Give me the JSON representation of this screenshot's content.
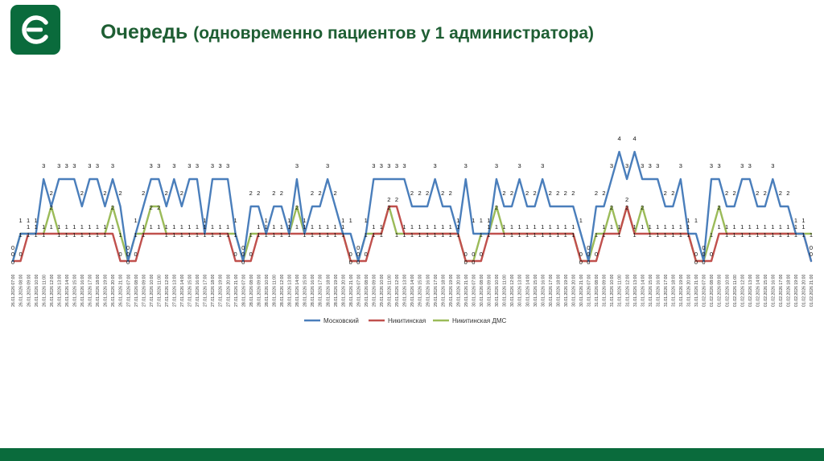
{
  "header": {
    "title": "Очередь",
    "subtitle": "(одновременно пациентов у 1 администратора)"
  },
  "colors": {
    "brand": "#0a6b3c",
    "title": "#1e5e33",
    "background": "#ffffff"
  },
  "icons": {
    "logo": "company-logo-icon"
  },
  "chart_data": {
    "type": "line",
    "title": "",
    "xlabel": "",
    "ylabel": "",
    "ylim": [
      0,
      4
    ],
    "grid": false,
    "legend": "bottom",
    "data_labels": true,
    "days": [
      "26.01.2026",
      "27.01.2026",
      "28.01.2026",
      "29.01.2026",
      "30.01.2026",
      "31.01.2026",
      "01.02.2026"
    ],
    "hours": [
      "07:00",
      "08:00",
      "09:00",
      "10:00",
      "11:00",
      "12:00",
      "13:00",
      "14:00",
      "15:00",
      "16:00",
      "17:00",
      "18:00",
      "19:00",
      "20:00",
      "21:00"
    ],
    "series": [
      {
        "name": "Московский",
        "color": "#4a7ebb",
        "values": [
          0,
          1,
          1,
          1,
          3,
          2,
          3,
          3,
          3,
          2,
          3,
          3,
          2,
          3,
          2,
          0,
          1,
          2,
          3,
          3,
          2,
          3,
          2,
          3,
          3,
          1,
          3,
          3,
          3,
          1,
          0,
          2,
          2,
          1,
          2,
          2,
          1,
          3,
          1,
          2,
          2,
          3,
          2,
          1,
          1,
          0,
          1,
          3,
          3,
          3,
          3,
          3,
          2,
          2,
          2,
          3,
          2,
          2,
          1,
          3,
          1,
          1,
          1,
          3,
          2,
          2,
          3,
          2,
          2,
          3,
          2,
          2,
          2,
          2,
          1,
          0,
          2,
          2,
          3,
          4,
          3,
          4,
          3,
          3,
          3,
          2,
          2,
          3,
          1,
          1,
          0,
          3,
          3,
          2,
          2,
          3,
          3,
          2,
          2,
          3,
          2,
          2,
          1,
          1,
          0
        ]
      },
      {
        "name": "Никитинская",
        "color": "#c0504d",
        "values": [
          0,
          0,
          1,
          1,
          1,
          1,
          1,
          1,
          1,
          1,
          1,
          1,
          1,
          1,
          0,
          0,
          0,
          1,
          1,
          1,
          1,
          1,
          1,
          1,
          1,
          1,
          1,
          1,
          1,
          0,
          0,
          0,
          1,
          1,
          1,
          1,
          1,
          1,
          1,
          1,
          1,
          1,
          1,
          1,
          0,
          0,
          0,
          1,
          1,
          2,
          2,
          1,
          1,
          1,
          1,
          1,
          1,
          1,
          1,
          0,
          0,
          0,
          1,
          1,
          1,
          1,
          1,
          1,
          1,
          1,
          1,
          1,
          1,
          1,
          0,
          0,
          0,
          1,
          1,
          1,
          2,
          1,
          1,
          1,
          1,
          1,
          1,
          1,
          1,
          0,
          0,
          0,
          1,
          1,
          1,
          1,
          1,
          1,
          1,
          1,
          1,
          1,
          1,
          1,
          0
        ]
      },
      {
        "name": "Никитинская ДМС",
        "color": "#9bbb59",
        "values": [
          0,
          1,
          1,
          1,
          1,
          2,
          1,
          1,
          1,
          1,
          1,
          1,
          1,
          2,
          1,
          0,
          1,
          1,
          2,
          2,
          1,
          1,
          1,
          1,
          1,
          1,
          1,
          1,
          1,
          1,
          0,
          1,
          1,
          1,
          1,
          1,
          1,
          2,
          1,
          1,
          1,
          1,
          1,
          1,
          0,
          0,
          1,
          1,
          1,
          2,
          1,
          1,
          1,
          1,
          1,
          1,
          1,
          1,
          1,
          0,
          0,
          1,
          1,
          2,
          1,
          1,
          1,
          1,
          1,
          1,
          1,
          1,
          1,
          1,
          0,
          0,
          1,
          1,
          2,
          1,
          2,
          1,
          2,
          1,
          1,
          1,
          1,
          1,
          1,
          0,
          0,
          1,
          2,
          1,
          1,
          1,
          1,
          1,
          1,
          1,
          1,
          1,
          1,
          1,
          1
        ]
      }
    ]
  }
}
